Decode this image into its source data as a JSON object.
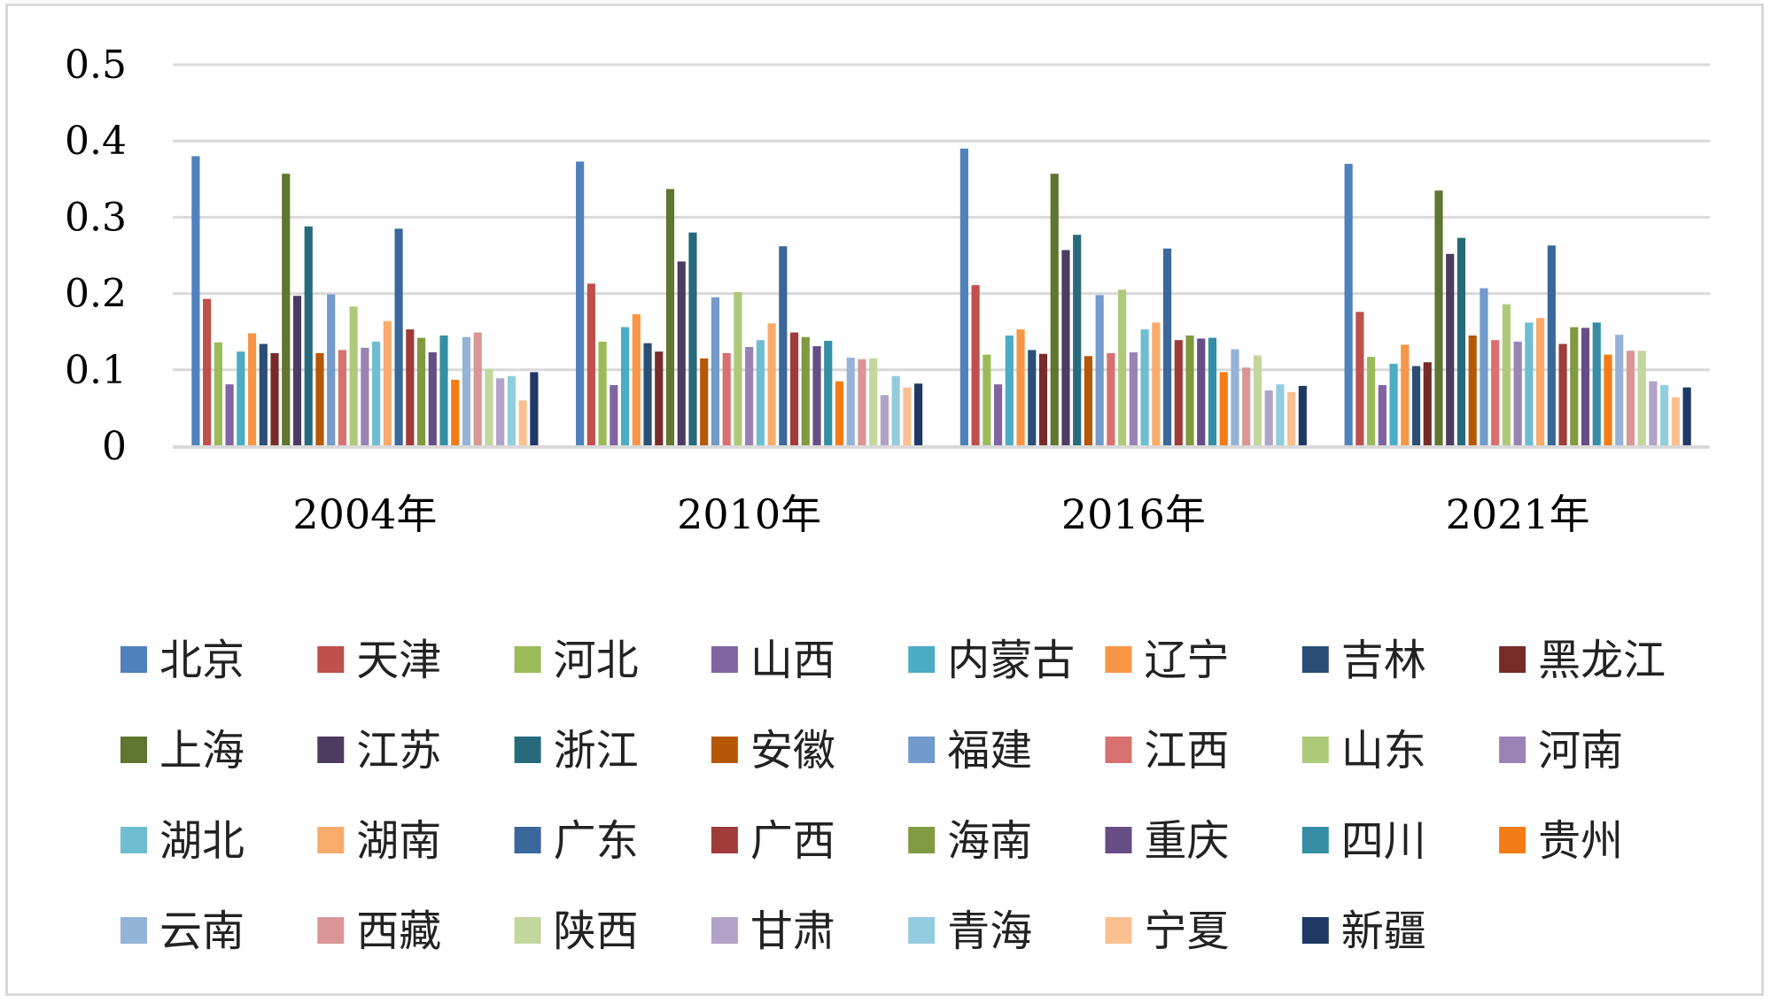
{
  "chart_data": {
    "type": "bar",
    "title": "",
    "xlabel": "",
    "ylabel": "",
    "ylim": [
      0,
      0.5
    ],
    "yticks": [
      "0",
      "0.1",
      "0.2",
      "0.3",
      "0.4",
      "0.5"
    ],
    "grid": true,
    "legend_position": "bottom",
    "categories": [
      "2004年",
      "2010年",
      "2016年",
      "2021年"
    ],
    "series": [
      {
        "name": "北京",
        "color": "#4f81bd",
        "values": [
          0.38,
          0.373,
          0.39,
          0.37
        ]
      },
      {
        "name": "天津",
        "color": "#c0504d",
        "values": [
          0.193,
          0.213,
          0.211,
          0.176
        ]
      },
      {
        "name": "河北",
        "color": "#9bbb59",
        "values": [
          0.136,
          0.137,
          0.12,
          0.117
        ]
      },
      {
        "name": "山西",
        "color": "#8064a2",
        "values": [
          0.081,
          0.08,
          0.081,
          0.08
        ]
      },
      {
        "name": "内蒙古",
        "color": "#4bacc6",
        "values": [
          0.124,
          0.156,
          0.145,
          0.108
        ]
      },
      {
        "name": "辽宁",
        "color": "#f79646",
        "values": [
          0.148,
          0.173,
          0.153,
          0.133
        ]
      },
      {
        "name": "吉林",
        "color": "#2c4d75",
        "values": [
          0.134,
          0.135,
          0.126,
          0.105
        ]
      },
      {
        "name": "黑龙江",
        "color": "#772c2a",
        "values": [
          0.122,
          0.124,
          0.121,
          0.11
        ]
      },
      {
        "name": "上海",
        "color": "#5f7530",
        "values": [
          0.357,
          0.337,
          0.357,
          0.335
        ]
      },
      {
        "name": "江苏",
        "color": "#4d3b62",
        "values": [
          0.197,
          0.242,
          0.257,
          0.252
        ]
      },
      {
        "name": "浙江",
        "color": "#276a7c",
        "values": [
          0.288,
          0.28,
          0.277,
          0.273
        ]
      },
      {
        "name": "安徽",
        "color": "#b65708",
        "values": [
          0.122,
          0.115,
          0.118,
          0.145
        ]
      },
      {
        "name": "福建",
        "color": "#729aca",
        "values": [
          0.199,
          0.195,
          0.198,
          0.207
        ]
      },
      {
        "name": "江西",
        "color": "#d7716f",
        "values": [
          0.126,
          0.122,
          0.122,
          0.139
        ]
      },
      {
        "name": "山东",
        "color": "#afc97a",
        "values": [
          0.183,
          0.202,
          0.205,
          0.186
        ]
      },
      {
        "name": "河南",
        "color": "#9983b5",
        "values": [
          0.129,
          0.13,
          0.123,
          0.137
        ]
      },
      {
        "name": "湖北",
        "color": "#6fbdd1",
        "values": [
          0.137,
          0.139,
          0.153,
          0.162
        ]
      },
      {
        "name": "湖南",
        "color": "#f9ab6b",
        "values": [
          0.164,
          0.161,
          0.162,
          0.168
        ]
      },
      {
        "name": "广东",
        "color": "#3a679c",
        "values": [
          0.285,
          0.262,
          0.259,
          0.263
        ]
      },
      {
        "name": "广西",
        "color": "#9f3b39",
        "values": [
          0.153,
          0.149,
          0.139,
          0.134
        ]
      },
      {
        "name": "海南",
        "color": "#7f9a41",
        "values": [
          0.142,
          0.143,
          0.145,
          0.156
        ]
      },
      {
        "name": "重庆",
        "color": "#664d86",
        "values": [
          0.123,
          0.131,
          0.141,
          0.155
        ]
      },
      {
        "name": "四川",
        "color": "#358ea5",
        "values": [
          0.145,
          0.138,
          0.142,
          0.162
        ]
      },
      {
        "name": "贵州",
        "color": "#f47c14",
        "values": [
          0.087,
          0.085,
          0.097,
          0.12
        ]
      },
      {
        "name": "云南",
        "color": "#95b3d7",
        "values": [
          0.143,
          0.116,
          0.127,
          0.146
        ]
      },
      {
        "name": "西藏",
        "color": "#d99694",
        "values": [
          0.149,
          0.114,
          0.103,
          0.125
        ]
      },
      {
        "name": "陕西",
        "color": "#c3d69b",
        "values": [
          0.101,
          0.115,
          0.119,
          0.125
        ]
      },
      {
        "name": "甘肃",
        "color": "#b3a2c7",
        "values": [
          0.089,
          0.067,
          0.073,
          0.085
        ]
      },
      {
        "name": "青海",
        "color": "#93cddd",
        "values": [
          0.092,
          0.092,
          0.081,
          0.08
        ]
      },
      {
        "name": "宁夏",
        "color": "#fac090",
        "values": [
          0.06,
          0.077,
          0.071,
          0.064
        ]
      },
      {
        "name": "新疆",
        "color": "#1f3864",
        "values": [
          0.097,
          0.082,
          0.079,
          0.077
        ]
      }
    ]
  }
}
